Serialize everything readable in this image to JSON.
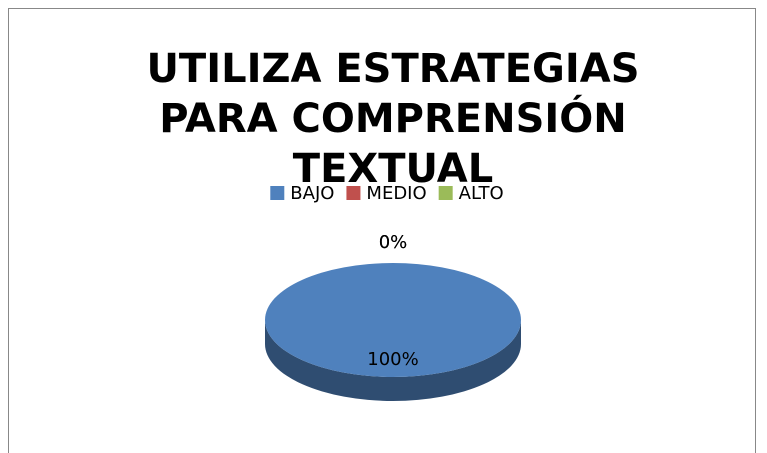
{
  "chart_data": {
    "type": "pie",
    "title": "UTILIZA ESTRATEGIAS PARA COMPRENSIÓN TEXTUAL",
    "categories": [
      "BAJO",
      "MEDIO",
      "ALTO"
    ],
    "values": [
      100,
      0,
      0
    ],
    "value_labels": [
      "100%",
      "0%",
      "0%"
    ],
    "colors": [
      "#4f81bd",
      "#c0504d",
      "#9bbb59"
    ],
    "legend": "top",
    "three_d": true
  }
}
